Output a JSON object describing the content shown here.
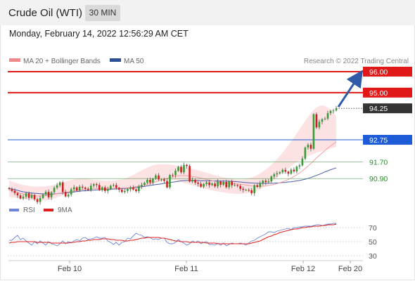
{
  "header": {
    "instrument": "Crude Oil (WTI)",
    "interval": "30 MIN"
  },
  "timestamp": "Monday, February 14, 2022 12:56:29 AM CET",
  "legend": {
    "main": [
      {
        "label": "MA 20 + Bollinger Bands",
        "color": "#f08a8a"
      },
      {
        "label": "MA 50",
        "color": "#2e4f95"
      }
    ],
    "credit": "Research © 2022 Trading Central",
    "rsi": [
      {
        "label": "RSI",
        "color": "#6b86d4"
      },
      {
        "label": "9MA",
        "color": "#e02020"
      }
    ]
  },
  "levels": [
    {
      "value": "96.00",
      "color": "#e01818",
      "style": "resistance"
    },
    {
      "value": "95.00",
      "color": "#e01818",
      "style": "resistance"
    },
    {
      "value": "94.25",
      "color": "#333333",
      "style": "last"
    },
    {
      "value": "92.75",
      "color": "#1e5bd6",
      "style": "pivot"
    },
    {
      "value": "91.70",
      "color": "#2a8a2a",
      "style": "support"
    },
    {
      "value": "90.90",
      "color": "#2a8a2a",
      "style": "support"
    }
  ],
  "chart_data": [
    {
      "type": "candlestick",
      "title": "Crude Oil (WTI)",
      "interval": "30 MIN",
      "ylim": [
        89.7,
        96.2
      ],
      "x_ticks": [
        "Feb 10",
        "Feb 11",
        "Feb 12",
        "Feb 20"
      ],
      "closes": [
        90.4,
        90.32,
        90.21,
        90.1,
        89.95,
        90.03,
        90.2,
        89.98,
        90.12,
        89.91,
        89.78,
        89.97,
        90.14,
        90.27,
        90.01,
        90.25,
        90.46,
        90.58,
        90.72,
        90.26,
        90.05,
        90.14,
        90.39,
        90.48,
        90.33,
        90.51,
        90.47,
        90.41,
        90.35,
        90.56,
        90.63,
        90.59,
        90.35,
        90.48,
        90.31,
        90.4,
        90.56,
        90.59,
        90.46,
        90.37,
        90.26,
        90.31,
        90.4,
        90.47,
        90.38,
        90.3,
        90.53,
        90.6,
        90.7,
        90.84,
        90.71,
        90.89,
        91.05,
        90.86,
        90.86,
        90.79,
        90.48,
        91.07,
        91.06,
        91.27,
        91.46,
        91.2,
        91.55,
        91.5,
        90.76,
        90.84,
        90.71,
        90.65,
        90.51,
        90.64,
        90.72,
        90.59,
        90.66,
        90.53,
        90.76,
        90.6,
        90.74,
        90.49,
        90.77,
        90.58,
        90.59,
        90.55,
        90.41,
        90.36,
        90.36,
        90.34,
        90.2,
        90.58,
        90.5,
        90.68,
        90.8,
        90.73,
        90.77,
        91.0,
        91.1,
        91.15,
        91.2,
        91.31,
        91.23,
        91.13,
        91.32,
        91.24,
        91.47,
        91.53,
        91.85,
        92.38,
        92.51,
        92.32,
        93.97,
        93.34,
        93.61,
        93.73,
        93.76,
        94.02,
        94.13,
        94.15,
        94.25
      ],
      "series": [
        {
          "name": "MA 50",
          "values": [
            90.43,
            90.4,
            90.37,
            90.34,
            90.3,
            90.27,
            90.25,
            90.23,
            90.21,
            90.2,
            90.19,
            90.18,
            90.17,
            90.17,
            90.16,
            90.16,
            90.17,
            90.18,
            90.2,
            90.21,
            90.22,
            90.23,
            90.24,
            90.26,
            90.28,
            90.3,
            90.31,
            90.32,
            90.33,
            90.34,
            90.35,
            90.36,
            90.36,
            90.37,
            90.38,
            90.38,
            90.39,
            90.4,
            90.41,
            90.41,
            90.42,
            90.43,
            90.44,
            90.45,
            90.46,
            90.48,
            90.49,
            90.51,
            90.53,
            90.55,
            90.57,
            90.59,
            90.61,
            90.63,
            90.65,
            90.67,
            90.69,
            90.71,
            90.73,
            90.75,
            90.77,
            90.79,
            90.8,
            90.81,
            90.81,
            90.81,
            90.81,
            90.81,
            90.8,
            90.8,
            90.8,
            90.8,
            90.79,
            90.79,
            90.79,
            90.78,
            90.78,
            90.78,
            90.77,
            90.77,
            90.76,
            90.75,
            90.74,
            90.72,
            90.71,
            90.7,
            90.69,
            90.68,
            90.68,
            90.67,
            90.67,
            90.67,
            90.67,
            90.67,
            90.68,
            90.69,
            90.7,
            90.71,
            90.72,
            90.74,
            90.75,
            90.77,
            90.79,
            90.81,
            90.84,
            90.87,
            90.91,
            90.95,
            91.0,
            91.05,
            91.1,
            91.16,
            91.22,
            91.27,
            91.32,
            91.37,
            91.41
          ]
        },
        {
          "name": "MA 20",
          "values": [
            90.35,
            90.32,
            90.28,
            90.24,
            90.2,
            90.17,
            90.14,
            90.11,
            90.09,
            90.08,
            90.07,
            90.07,
            90.08,
            90.09,
            90.1,
            90.12,
            90.15,
            90.18,
            90.21,
            90.23,
            90.25,
            90.27,
            90.29,
            90.31,
            90.33,
            90.35,
            90.37,
            90.38,
            90.39,
            90.4,
            90.41,
            90.42,
            90.42,
            90.43,
            90.43,
            90.43,
            90.43,
            90.43,
            90.44,
            90.44,
            90.44,
            90.45,
            90.46,
            90.47,
            90.49,
            90.51,
            90.54,
            90.57,
            90.6,
            90.63,
            90.67,
            90.71,
            90.75,
            90.79,
            90.83,
            90.87,
            90.91,
            90.95,
            90.98,
            91.01,
            91.03,
            91.04,
            91.04,
            91.03,
            91.02,
            91.0,
            90.98,
            90.95,
            90.92,
            90.89,
            90.86,
            90.83,
            90.8,
            90.77,
            90.74,
            90.72,
            90.7,
            90.68,
            90.67,
            90.66,
            90.65,
            90.64,
            90.63,
            90.61,
            90.59,
            90.57,
            90.55,
            90.54,
            90.53,
            90.53,
            90.54,
            90.55,
            90.57,
            90.59,
            90.62,
            90.66,
            90.7,
            90.75,
            90.8,
            90.86,
            90.92,
            91.0,
            91.08,
            91.17,
            91.27,
            91.38,
            91.5,
            91.62,
            91.75,
            91.88,
            92.0,
            92.12,
            92.24,
            92.35,
            92.46,
            92.56,
            92.66
          ]
        }
      ],
      "bollinger": {
        "upper": [
          90.81,
          90.76,
          90.71,
          90.67,
          90.63,
          90.6,
          90.57,
          90.55,
          90.53,
          90.52,
          90.51,
          90.51,
          90.52,
          90.53,
          90.54,
          90.57,
          90.6,
          90.64,
          90.68,
          90.72,
          90.76,
          90.8,
          90.83,
          90.86,
          90.88,
          90.89,
          90.9,
          90.89,
          90.88,
          90.86,
          90.84,
          90.83,
          90.82,
          90.81,
          90.8,
          90.8,
          90.8,
          90.81,
          90.82,
          90.83,
          90.86,
          90.9,
          90.95,
          91.01,
          91.07,
          91.14,
          91.22,
          91.29,
          91.36,
          91.42,
          91.48,
          91.52,
          91.56,
          91.58,
          91.59,
          91.59,
          91.58,
          91.57,
          91.55,
          91.53,
          91.51,
          91.49,
          91.46,
          91.43,
          91.4,
          91.36,
          91.33,
          91.29,
          91.25,
          91.21,
          91.18,
          91.14,
          91.1,
          91.06,
          91.03,
          90.99,
          90.96,
          90.93,
          90.91,
          90.89,
          90.87,
          90.86,
          90.86,
          90.86,
          90.88,
          90.91,
          90.95,
          91.0,
          91.07,
          91.14,
          91.23,
          91.33,
          91.44,
          91.56,
          91.69,
          91.83,
          91.98,
          92.14,
          92.31,
          92.49,
          92.67,
          92.86,
          93.05,
          93.25,
          93.45,
          93.65,
          93.84,
          94.02,
          94.17,
          94.29,
          94.36,
          94.39,
          94.36,
          94.29,
          94.18,
          94.03,
          93.86
        ],
        "lower": [
          90.03,
          90.01,
          89.99,
          89.97,
          89.95,
          89.93,
          89.91,
          89.89,
          89.88,
          89.87,
          89.86,
          89.85,
          89.85,
          89.86,
          89.88,
          89.91,
          89.95,
          90.0,
          90.05,
          90.1,
          90.15,
          90.19,
          90.23,
          90.27,
          90.3,
          90.33,
          90.35,
          90.37,
          90.38,
          90.39,
          90.4,
          90.4,
          90.41,
          90.41,
          90.41,
          90.4,
          90.4,
          90.39,
          90.38,
          90.37,
          90.36,
          90.35,
          90.35,
          90.35,
          90.36,
          90.38,
          90.4,
          90.44,
          90.48,
          90.53,
          90.59,
          90.65,
          90.71,
          90.76,
          90.8,
          90.83,
          90.85,
          90.85,
          90.84,
          90.81,
          90.78,
          90.74,
          90.7,
          90.66,
          90.62,
          90.58,
          90.54,
          90.5,
          90.46,
          90.43,
          90.4,
          90.37,
          90.34,
          90.31,
          90.28,
          90.26,
          90.24,
          90.22,
          90.2,
          90.19,
          90.18,
          90.17,
          90.17,
          90.18,
          90.19,
          90.21,
          90.24,
          90.28,
          90.33,
          90.39,
          90.46,
          90.54,
          90.63,
          90.73,
          90.84,
          90.95,
          91.06,
          91.17,
          91.28,
          91.39,
          91.49,
          91.59,
          91.68,
          91.76,
          91.84,
          91.91,
          91.97,
          92.03,
          92.08,
          92.13,
          92.17,
          92.21,
          92.25,
          92.29,
          92.33,
          92.37,
          92.41
        ]
      },
      "projection": {
        "from": 94.25,
        "to": 96.0
      }
    },
    {
      "type": "line",
      "title": "RSI",
      "ylim": [
        20,
        82
      ],
      "y_ticks": [
        "70",
        "50",
        "30"
      ],
      "series": [
        {
          "name": "RSI",
          "values": [
            52,
            52,
            56,
            59,
            53,
            55,
            51,
            48,
            45,
            50,
            47,
            51,
            48,
            45,
            50,
            47,
            46,
            44,
            47,
            51,
            47,
            50,
            48,
            51,
            53,
            51,
            55,
            56,
            53,
            54,
            55,
            57,
            55,
            55,
            56,
            51,
            49,
            46,
            49,
            45,
            49,
            50,
            55,
            54,
            58,
            62,
            60,
            59,
            56,
            57,
            56,
            53,
            54,
            53,
            55,
            55,
            49,
            47,
            47,
            49,
            53,
            50,
            48,
            45,
            47,
            51,
            49,
            51,
            47,
            49,
            50,
            46,
            46,
            45,
            48,
            45,
            48,
            44,
            46,
            48,
            47,
            47,
            48,
            47,
            45,
            48,
            51,
            52,
            55,
            57,
            59,
            61,
            64,
            64,
            63,
            65,
            66,
            67,
            68,
            69,
            67,
            70,
            70,
            71,
            71,
            72,
            72,
            72,
            73,
            74,
            74,
            73,
            74,
            75,
            75,
            76,
            76
          ]
        },
        {
          "name": "9MA",
          "values": [
            48,
            49,
            49,
            50,
            50,
            50,
            50,
            50,
            50,
            50,
            49,
            49,
            49,
            49,
            49,
            48,
            48,
            48,
            48,
            48,
            48,
            48,
            49,
            49,
            50,
            50,
            51,
            51,
            52,
            52,
            53,
            53,
            53,
            54,
            54,
            54,
            53,
            53,
            52,
            52,
            52,
            51,
            51,
            52,
            52,
            53,
            54,
            55,
            55,
            56,
            56,
            56,
            56,
            56,
            55,
            55,
            54,
            53,
            52,
            51,
            51,
            50,
            50,
            50,
            49,
            49,
            49,
            49,
            49,
            49,
            48,
            48,
            48,
            48,
            47,
            47,
            47,
            47,
            47,
            47,
            47,
            47,
            47,
            47,
            47,
            47,
            48,
            49,
            50,
            51,
            53,
            55,
            57,
            58,
            60,
            61,
            63,
            64,
            65,
            66,
            67,
            68,
            68,
            69,
            70,
            70,
            71,
            71,
            72,
            72,
            72,
            73,
            73,
            74,
            74,
            74,
            75
          ]
        }
      ]
    }
  ]
}
